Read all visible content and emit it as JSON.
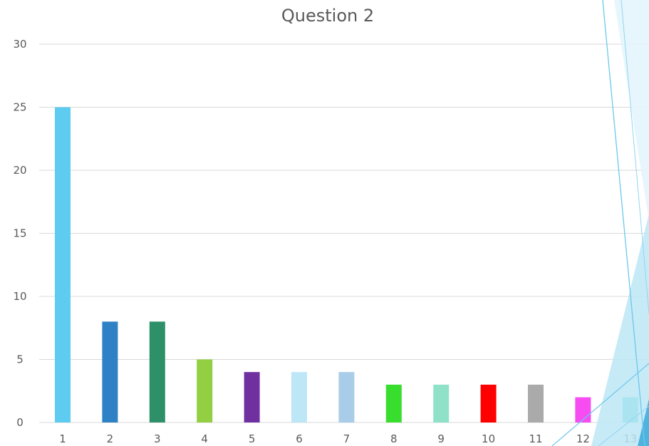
{
  "chart_data": {
    "type": "bar",
    "title": "Question 2",
    "categories": [
      "1",
      "2",
      "3",
      "4",
      "5",
      "6",
      "7",
      "8",
      "9",
      "10",
      "11",
      "12",
      "13"
    ],
    "values": [
      25,
      8,
      8,
      5,
      4,
      4,
      4,
      3,
      3,
      3,
      3,
      2,
      2
    ],
    "colors": [
      "#5ecbf0",
      "#2e81c4",
      "#2e9068",
      "#93cf42",
      "#7030a0",
      "#bde7f7",
      "#a9cde8",
      "#39dd2e",
      "#8fe2c8",
      "#ff0000",
      "#aaaaaa",
      "#f64cf2",
      "#3ed3cc"
    ],
    "ylim": [
      0,
      30
    ],
    "yticks": [
      0,
      5,
      10,
      15,
      20,
      25,
      30
    ],
    "xlabel": "",
    "ylabel": "",
    "grid": true,
    "legend": "none"
  },
  "theme": {
    "gridline_color": "#d9d9d9",
    "text_color": "#595959",
    "decoration_color": "#6cc8ec"
  }
}
